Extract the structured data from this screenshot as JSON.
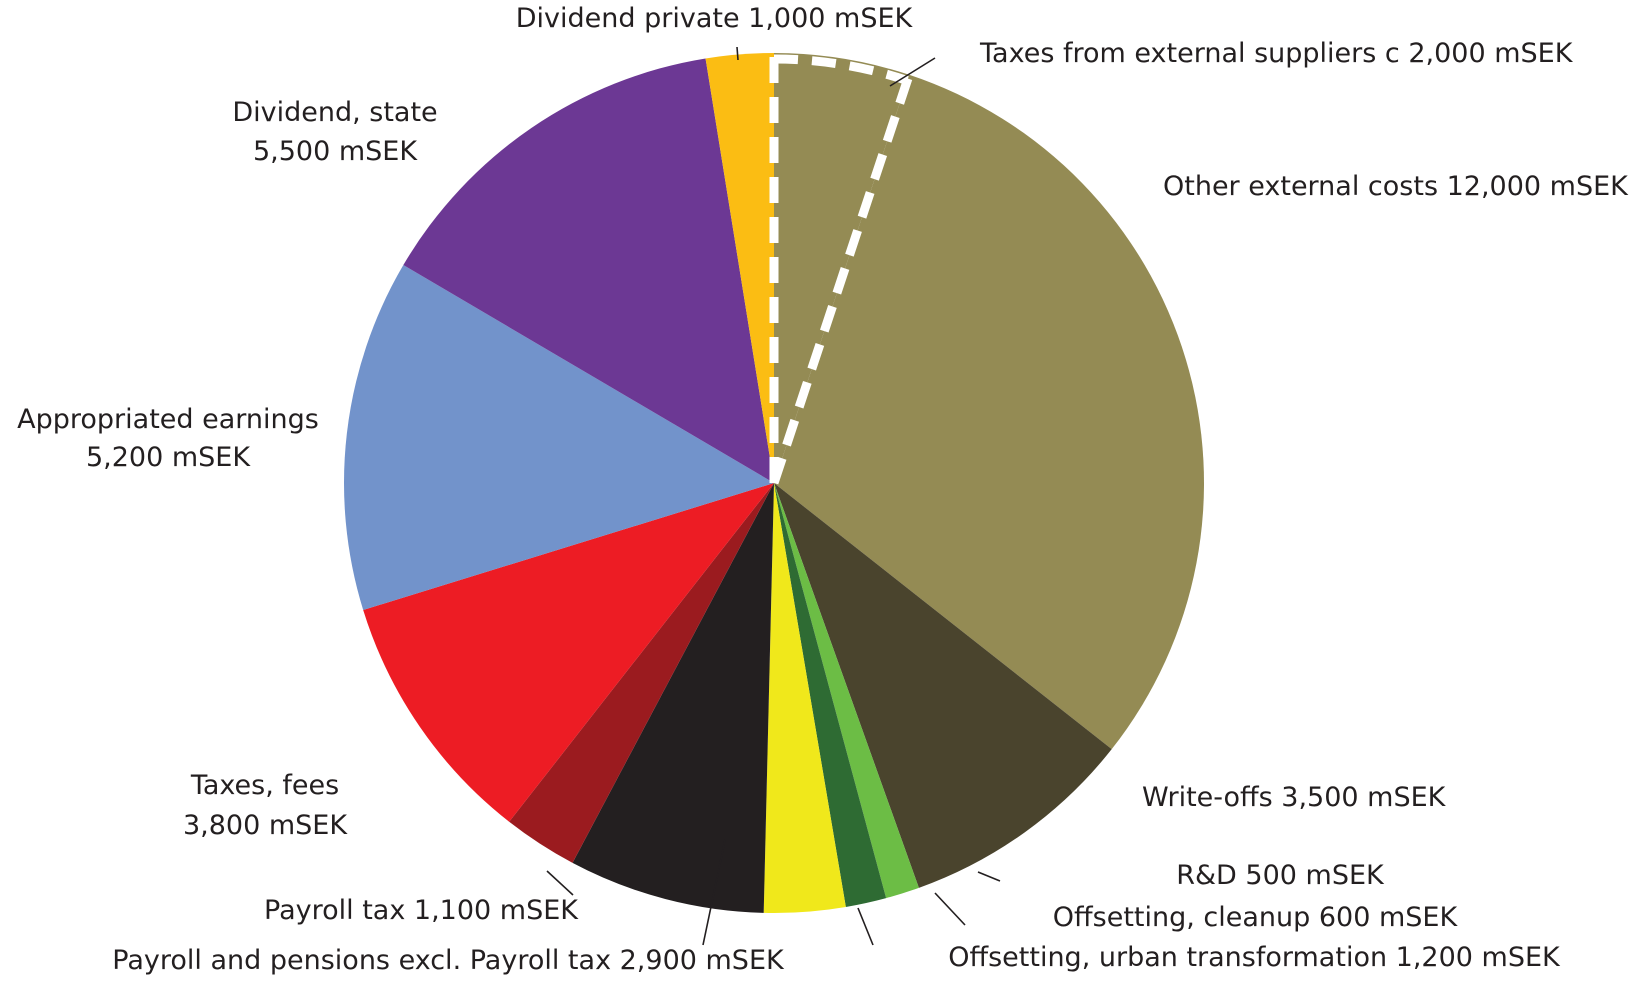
{
  "chart_data": {
    "type": "pie",
    "unit": "mSEK",
    "title": "",
    "start_angle_deg": 0,
    "direction": "clockwise",
    "slices": [
      {
        "name": "Taxes from external suppliers c 2,000 mSEK",
        "label_lines": [
          "Taxes from external suppliers c 2,000 mSEK"
        ],
        "value": 2000,
        "color": "#948b54",
        "dashed_boundary": true
      },
      {
        "name": "Other external costs 12,000 mSEK",
        "label_lines": [
          "Other external costs 12,000 mSEK"
        ],
        "value": 12000,
        "color": "#948b54"
      },
      {
        "name": "Write-offs 3,500 mSEK",
        "label_lines": [
          "Write-offs 3,500 mSEK"
        ],
        "value": 3500,
        "color": "#4a442d"
      },
      {
        "name": "R&D 500 mSEK",
        "label_lines": [
          "R&D 500 mSEK"
        ],
        "value": 500,
        "color": "#6cbd45"
      },
      {
        "name": "Offsetting, cleanup 600 mSEK",
        "label_lines": [
          "Offsetting, cleanup 600 mSEK"
        ],
        "value": 600,
        "color": "#2e6b33"
      },
      {
        "name": "Offsetting, urban transformation 1,200 mSEK",
        "label_lines": [
          "Offsetting, urban transformation 1,200 mSEK"
        ],
        "value": 1200,
        "color": "#f0e81b"
      },
      {
        "name": "Payroll and pensions excl. Payroll tax 2,900 mSEK",
        "label_lines": [
          "Payroll and pensions excl. Payroll tax 2,900 mSEK"
        ],
        "value": 2900,
        "color": "#231f20"
      },
      {
        "name": "Payroll tax 1,100 mSEK",
        "label_lines": [
          "Payroll tax 1,100 mSEK"
        ],
        "value": 1100,
        "color": "#9b1b1f"
      },
      {
        "name": "Taxes, fees 3,800 mSEK",
        "label_lines": [
          "Taxes, fees",
          "3,800 mSEK"
        ],
        "value": 3800,
        "color": "#ed1c24"
      },
      {
        "name": "Appropriated earnings 5,200 mSEK",
        "label_lines": [
          "Appropriated earnings",
          "5,200 mSEK"
        ],
        "value": 5200,
        "color": "#7293cb"
      },
      {
        "name": "Dividend, state 5,500 mSEK",
        "label_lines": [
          "Dividend, state",
          "5,500 mSEK"
        ],
        "value": 5500,
        "color": "#6c3894"
      },
      {
        "name": "Dividend private 1,000 mSEK",
        "label_lines": [
          "Dividend private 1,000 mSEK"
        ],
        "value": 1000,
        "color": "#fbbd13"
      }
    ]
  }
}
